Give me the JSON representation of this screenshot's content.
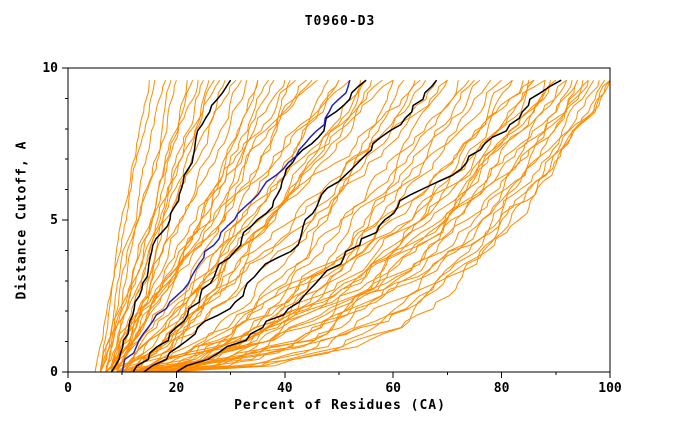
{
  "chart_data": {
    "type": "line",
    "title": "T0960-D3",
    "xlabel": "Percent of Residues (CA)",
    "ylabel": "Distance Cutoff, A",
    "xlim": [
      0,
      100
    ],
    "ylim": [
      0,
      10
    ],
    "x_major_ticks": [
      0,
      20,
      40,
      60,
      80,
      100
    ],
    "x_minor_step": 10,
    "y_major_ticks": [
      0,
      5,
      10
    ],
    "y_minor_step": 1,
    "grid": false,
    "legend": "none",
    "curve_top_y": 9.6,
    "curve_format": [
      "x_percent_at_cutoff_0",
      "x_percent_at_top",
      "shape_bias"
    ],
    "colors": {
      "model": "#ff8c00",
      "reference": "#000000",
      "highlight": "#2222bb",
      "frame": "#000000",
      "background": "#ffffff"
    },
    "series_groups": [
      {
        "name": "model-curve",
        "color": "#ff8c00",
        "line_width": 1,
        "curves": [
          [
            5,
            15,
            1.0
          ],
          [
            6,
            16,
            1.1
          ],
          [
            6,
            18,
            0.95
          ],
          [
            7,
            20,
            1.05
          ],
          [
            6,
            22,
            1.0
          ],
          [
            7,
            23,
            0.9
          ],
          [
            8,
            25,
            1.1
          ],
          [
            6,
            26,
            1.0
          ],
          [
            7,
            28,
            0.95
          ],
          [
            8,
            29,
            1.05
          ],
          [
            7,
            31,
            1.0
          ],
          [
            8,
            33,
            0.9
          ],
          [
            9,
            35,
            1.0
          ],
          [
            8,
            37,
            1.05
          ],
          [
            7,
            19,
            1.15
          ],
          [
            6,
            24,
            1.1
          ],
          [
            8,
            27,
            0.95
          ],
          [
            9,
            32,
            1.0
          ],
          [
            7,
            40,
            0.9
          ],
          [
            8,
            42,
            1.0
          ],
          [
            9,
            44,
            0.85
          ],
          [
            8,
            46,
            1.0
          ],
          [
            10,
            48,
            0.9
          ],
          [
            9,
            50,
            1.0
          ],
          [
            8,
            52,
            0.85
          ],
          [
            10,
            54,
            0.95
          ],
          [
            11,
            56,
            0.8
          ],
          [
            9,
            58,
            1.0
          ],
          [
            10,
            60,
            0.9
          ],
          [
            12,
            62,
            0.85
          ],
          [
            9,
            64,
            0.95
          ],
          [
            11,
            66,
            0.8
          ],
          [
            10,
            68,
            0.9
          ],
          [
            12,
            70,
            0.85
          ],
          [
            8,
            45,
            1.05
          ],
          [
            9,
            55,
            0.8
          ],
          [
            10,
            65,
            0.75
          ],
          [
            11,
            50,
            0.9
          ],
          [
            9,
            72,
            0.6
          ],
          [
            10,
            74,
            0.55
          ],
          [
            11,
            76,
            0.5
          ],
          [
            12,
            78,
            0.48
          ],
          [
            10,
            80,
            0.5
          ],
          [
            13,
            82,
            0.45
          ],
          [
            11,
            84,
            0.5
          ],
          [
            14,
            86,
            0.42
          ],
          [
            12,
            88,
            0.45
          ],
          [
            15,
            90,
            0.4
          ],
          [
            13,
            92,
            0.45
          ],
          [
            16,
            94,
            0.4
          ],
          [
            12,
            96,
            0.38
          ],
          [
            17,
            98,
            0.4
          ],
          [
            14,
            100,
            0.36
          ],
          [
            18,
            100,
            0.4
          ],
          [
            13,
            85,
            0.5
          ],
          [
            15,
            95,
            0.38
          ],
          [
            11,
            90,
            0.42
          ],
          [
            16,
            88,
            0.45
          ],
          [
            12,
            93,
            0.4
          ],
          [
            14,
            97,
            0.36
          ],
          [
            19,
            99,
            0.42
          ],
          [
            20,
            100,
            0.38
          ],
          [
            10,
            86,
            0.5
          ],
          [
            13,
            94,
            0.4
          ],
          [
            15,
            92,
            0.45
          ],
          [
            17,
            96,
            0.38
          ],
          [
            11,
            82,
            0.55
          ],
          [
            12,
            89,
            0.48
          ],
          [
            8,
            35,
            0.7
          ],
          [
            9,
            38,
            0.75
          ],
          [
            10,
            41,
            0.7
          ],
          [
            15,
            60,
            0.6
          ],
          [
            14,
            55,
            0.65
          ],
          [
            16,
            75,
            0.5
          ],
          [
            18,
            70,
            0.55
          ]
        ]
      },
      {
        "name": "reference-curve",
        "color": "#000000",
        "line_width": 1.5,
        "curves": [
          [
            8,
            30,
            1.05
          ],
          [
            12,
            55,
            0.9
          ],
          [
            14,
            68,
            0.78
          ],
          [
            20,
            91,
            0.8
          ]
        ]
      },
      {
        "name": "highlight-curve",
        "color": "#2222bb",
        "line_width": 1.5,
        "curves": [
          [
            10,
            52,
            0.95
          ]
        ]
      }
    ]
  }
}
